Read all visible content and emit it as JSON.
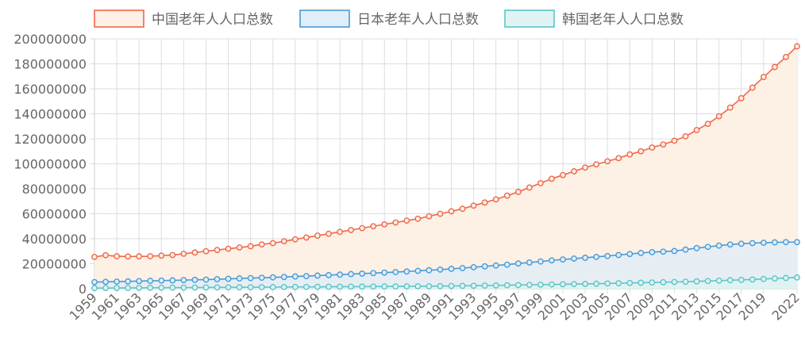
{
  "chart_data": {
    "type": "line",
    "fill": true,
    "x": [
      "1959",
      "1960",
      "1961",
      "1962",
      "1963",
      "1964",
      "1965",
      "1966",
      "1967",
      "1968",
      "1969",
      "1970",
      "1971",
      "1972",
      "1973",
      "1974",
      "1975",
      "1976",
      "1977",
      "1978",
      "1979",
      "1980",
      "1981",
      "1982",
      "1983",
      "1984",
      "1985",
      "1986",
      "1987",
      "1988",
      "1989",
      "1990",
      "1991",
      "1992",
      "1993",
      "1994",
      "1995",
      "1996",
      "1997",
      "1998",
      "1999",
      "2000",
      "2001",
      "2002",
      "2003",
      "2004",
      "2005",
      "2006",
      "2007",
      "2008",
      "2009",
      "2010",
      "2011",
      "2012",
      "2013",
      "2014",
      "2015",
      "2016",
      "2017",
      "2018",
      "2019",
      "2020",
      "2021",
      "2022"
    ],
    "xtick_labels": [
      "1959",
      "1961",
      "1963",
      "1965",
      "1967",
      "1969",
      "1971",
      "1973",
      "1975",
      "1977",
      "1979",
      "1981",
      "1983",
      "1985",
      "1987",
      "1989",
      "1991",
      "1993",
      "1995",
      "1997",
      "1999",
      "2001",
      "2003",
      "2005",
      "2007",
      "2009",
      "2011",
      "2013",
      "2015",
      "2017",
      "2019",
      "2022"
    ],
    "ylim": [
      0,
      200000000
    ],
    "yticks": [
      0,
      20000000,
      40000000,
      60000000,
      80000000,
      100000000,
      120000000,
      140000000,
      160000000,
      180000000,
      200000000
    ],
    "grid": true,
    "legend_position": "top",
    "series": [
      {
        "name": "中国老年人人口总数",
        "line_color": "#f0674b",
        "fill_color": "#fdf0e4",
        "values": [
          25500000,
          26800000,
          26000000,
          25800000,
          25900000,
          26000000,
          26500000,
          27000000,
          28000000,
          29000000,
          30000000,
          31000000,
          32000000,
          33000000,
          34000000,
          35500000,
          36500000,
          38000000,
          39500000,
          41000000,
          42500000,
          44000000,
          45500000,
          47000000,
          48500000,
          50000000,
          51500000,
          53000000,
          54500000,
          56000000,
          58000000,
          60000000,
          62000000,
          64000000,
          66500000,
          69000000,
          71500000,
          74500000,
          77500000,
          81000000,
          84500000,
          88000000,
          91000000,
          94000000,
          97000000,
          99500000,
          102000000,
          104500000,
          107500000,
          110000000,
          113000000,
          115500000,
          118500000,
          122000000,
          127000000,
          132000000,
          138000000,
          145000000,
          152500000,
          161000000,
          169500000,
          177500000,
          185500000,
          194000000
        ]
      },
      {
        "name": "日本老年人人口总数",
        "line_color": "#4a9ad6",
        "fill_color": "#deeefa",
        "values": [
          5300000,
          5500000,
          5700000,
          5900000,
          6100000,
          6300000,
          6500000,
          6700000,
          6900000,
          7100000,
          7300000,
          7600000,
          7900000,
          8200000,
          8500000,
          8800000,
          9100000,
          9400000,
          9800000,
          10100000,
          10500000,
          10900000,
          11300000,
          11700000,
          12100000,
          12500000,
          12900000,
          13300000,
          13800000,
          14300000,
          14800000,
          15300000,
          15900000,
          16500000,
          17200000,
          17900000,
          18600000,
          19300000,
          20200000,
          21000000,
          21800000,
          22700000,
          23400000,
          24100000,
          24800000,
          25500000,
          26200000,
          27000000,
          27800000,
          28600000,
          29300000,
          29700000,
          30200000,
          31300000,
          32500000,
          33500000,
          34500000,
          35400000,
          36000000,
          36500000,
          36800000,
          37100000,
          37300000,
          37300000
        ]
      },
      {
        "name": "韩国老年人人口总数",
        "line_color": "#5cc5c5",
        "fill_color": "#dff3f3",
        "values": [
          500000,
          550000,
          600000,
          650000,
          700000,
          750000,
          800000,
          850000,
          900000,
          950000,
          1000000,
          1050000,
          1100000,
          1150000,
          1200000,
          1250000,
          1300000,
          1350000,
          1400000,
          1450000,
          1500000,
          1550000,
          1600000,
          1650000,
          1700000,
          1750000,
          1800000,
          1850000,
          1900000,
          1950000,
          2000000,
          2100000,
          2200000,
          2300000,
          2400000,
          2500000,
          2650000,
          2800000,
          2950000,
          3100000,
          3250000,
          3400000,
          3550000,
          3700000,
          3850000,
          4000000,
          4200000,
          4400000,
          4600000,
          4800000,
          5000000,
          5200000,
          5400000,
          5600000,
          5900000,
          6200000,
          6500000,
          6800000,
          7100000,
          7400000,
          7800000,
          8200000,
          8600000,
          9000000
        ]
      }
    ]
  }
}
